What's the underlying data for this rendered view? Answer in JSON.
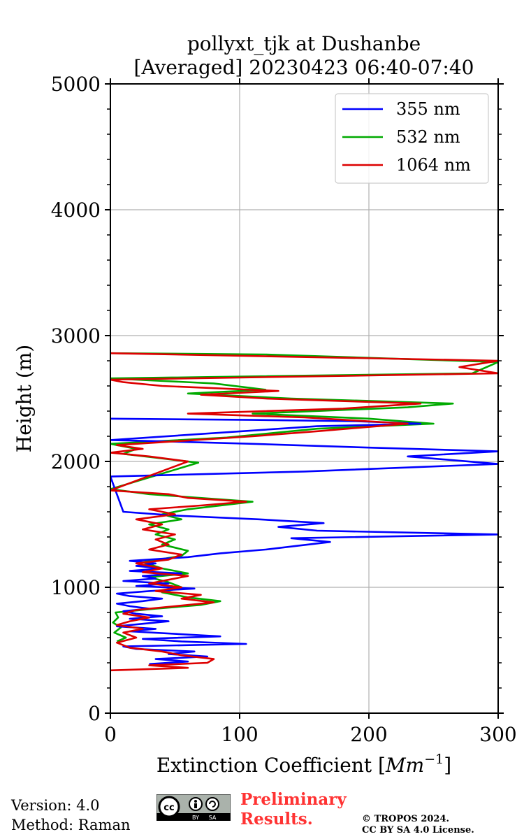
{
  "chart_data": {
    "type": "line",
    "title": "pollyxt_tjk at Dushanbe",
    "subtitle": "[Averaged] 20230423 06:40-07:40",
    "xlabel": "Extinction Coefficient [",
    "xlabel_unit": "Mm",
    "xlabel_exp": "−1",
    "xlabel_close": "]",
    "ylabel": "Height (m)",
    "xlim": [
      0,
      300
    ],
    "ylim": [
      0,
      5000
    ],
    "x_ticks": [
      0,
      100,
      200,
      300
    ],
    "y_ticks": [
      0,
      1000,
      2000,
      3000,
      4000,
      5000
    ],
    "x_tick_labels": [
      "0",
      "100",
      "200",
      "300"
    ],
    "y_tick_labels": [
      "0",
      "1000",
      "2000",
      "3000",
      "4000",
      "5000"
    ],
    "grid": true,
    "legend_position": "top-right",
    "series": [
      {
        "name": "355 nm",
        "color": "#0000ff",
        "points": [
          [
            30,
            390
          ],
          [
            60,
            410
          ],
          [
            35,
            430
          ],
          [
            75,
            450
          ],
          [
            45,
            470
          ],
          [
            65,
            490
          ],
          [
            20,
            510
          ],
          [
            10,
            530
          ],
          [
            105,
            550
          ],
          [
            55,
            570
          ],
          [
            25,
            590
          ],
          [
            85,
            610
          ],
          [
            50,
            630
          ],
          [
            15,
            650
          ],
          [
            35,
            670
          ],
          [
            5,
            690
          ],
          [
            25,
            710
          ],
          [
            45,
            730
          ],
          [
            15,
            750
          ],
          [
            40,
            770
          ],
          [
            20,
            790
          ],
          [
            10,
            810
          ],
          [
            30,
            830
          ],
          [
            15,
            850
          ],
          [
            5,
            870
          ],
          [
            25,
            890
          ],
          [
            40,
            910
          ],
          [
            15,
            930
          ],
          [
            5,
            950
          ],
          [
            30,
            970
          ],
          [
            65,
            990
          ],
          [
            20,
            1010
          ],
          [
            45,
            1030
          ],
          [
            10,
            1050
          ],
          [
            35,
            1070
          ],
          [
            25,
            1090
          ],
          [
            55,
            1110
          ],
          [
            15,
            1130
          ],
          [
            40,
            1150
          ],
          [
            20,
            1170
          ],
          [
            35,
            1190
          ],
          [
            15,
            1210
          ],
          [
            60,
            1240
          ],
          [
            85,
            1270
          ],
          [
            120,
            1300
          ],
          [
            145,
            1330
          ],
          [
            170,
            1360
          ],
          [
            140,
            1390
          ],
          [
            300,
            1420
          ],
          [
            160,
            1450
          ],
          [
            130,
            1480
          ],
          [
            165,
            1510
          ],
          [
            115,
            1540
          ],
          [
            50,
            1570
          ],
          [
            10,
            1600
          ],
          [
            0,
            1880
          ],
          [
            150,
            1920
          ],
          [
            300,
            1980
          ],
          [
            230,
            2040
          ],
          [
            300,
            2080
          ],
          [
            200,
            2110
          ],
          [
            110,
            2140
          ],
          [
            40,
            2160
          ],
          [
            0,
            2170
          ],
          [
            160,
            2280
          ],
          [
            240,
            2300
          ],
          [
            190,
            2320
          ],
          [
            110,
            2330
          ],
          [
            0,
            2340
          ]
        ]
      },
      {
        "name": "532 nm",
        "color": "#00aa00",
        "points": [
          [
            5,
            570
          ],
          [
            12,
            600
          ],
          [
            3,
            640
          ],
          [
            8,
            680
          ],
          [
            2,
            720
          ],
          [
            6,
            760
          ],
          [
            4,
            800
          ],
          [
            35,
            830
          ],
          [
            70,
            860
          ],
          [
            85,
            890
          ],
          [
            60,
            920
          ],
          [
            40,
            960
          ],
          [
            55,
            1000
          ],
          [
            45,
            1040
          ],
          [
            30,
            1080
          ],
          [
            60,
            1110
          ],
          [
            40,
            1150
          ],
          [
            25,
            1200
          ],
          [
            55,
            1250
          ],
          [
            60,
            1290
          ],
          [
            40,
            1340
          ],
          [
            50,
            1380
          ],
          [
            35,
            1420
          ],
          [
            45,
            1460
          ],
          [
            30,
            1500
          ],
          [
            55,
            1540
          ],
          [
            40,
            1580
          ],
          [
            60,
            1620
          ],
          [
            110,
            1680
          ],
          [
            30,
            1740
          ],
          [
            0,
            1780
          ],
          [
            68,
            1990
          ],
          [
            35,
            2030
          ],
          [
            10,
            2060
          ],
          [
            20,
            2100
          ],
          [
            0,
            2140
          ],
          [
            90,
            2190
          ],
          [
            130,
            2230
          ],
          [
            160,
            2260
          ],
          [
            250,
            2300
          ],
          [
            200,
            2340
          ],
          [
            110,
            2380
          ],
          [
            230,
            2430
          ],
          [
            265,
            2460
          ],
          [
            140,
            2500
          ],
          [
            60,
            2540
          ],
          [
            120,
            2570
          ],
          [
            80,
            2620
          ],
          [
            0,
            2660
          ],
          [
            280,
            2700
          ],
          [
            300,
            2790
          ],
          [
            120,
            2850
          ],
          [
            0,
            2860
          ]
        ]
      },
      {
        "name": "1064 nm",
        "color": "#dd0000",
        "points": [
          [
            0,
            340
          ],
          [
            60,
            360
          ],
          [
            30,
            380
          ],
          [
            75,
            400
          ],
          [
            80,
            430
          ],
          [
            55,
            460
          ],
          [
            40,
            490
          ],
          [
            15,
            520
          ],
          [
            5,
            560
          ],
          [
            20,
            600
          ],
          [
            10,
            640
          ],
          [
            25,
            670
          ],
          [
            5,
            700
          ],
          [
            15,
            730
          ],
          [
            30,
            760
          ],
          [
            10,
            790
          ],
          [
            20,
            820
          ],
          [
            50,
            850
          ],
          [
            80,
            880
          ],
          [
            55,
            910
          ],
          [
            70,
            940
          ],
          [
            35,
            970
          ],
          [
            55,
            1000
          ],
          [
            30,
            1030
          ],
          [
            45,
            1060
          ],
          [
            60,
            1090
          ],
          [
            25,
            1120
          ],
          [
            40,
            1150
          ],
          [
            20,
            1190
          ],
          [
            45,
            1220
          ],
          [
            55,
            1260
          ],
          [
            30,
            1300
          ],
          [
            45,
            1340
          ],
          [
            35,
            1380
          ],
          [
            50,
            1420
          ],
          [
            25,
            1460
          ],
          [
            40,
            1500
          ],
          [
            20,
            1540
          ],
          [
            50,
            1580
          ],
          [
            30,
            1620
          ],
          [
            70,
            1650
          ],
          [
            105,
            1680
          ],
          [
            60,
            1710
          ],
          [
            45,
            1740
          ],
          [
            0,
            1770
          ],
          [
            60,
            2000
          ],
          [
            30,
            2040
          ],
          [
            0,
            2070
          ],
          [
            25,
            2100
          ],
          [
            5,
            2130
          ],
          [
            65,
            2170
          ],
          [
            110,
            2200
          ],
          [
            160,
            2240
          ],
          [
            230,
            2300
          ],
          [
            150,
            2350
          ],
          [
            60,
            2380
          ],
          [
            180,
            2420
          ],
          [
            240,
            2460
          ],
          [
            120,
            2500
          ],
          [
            70,
            2530
          ],
          [
            130,
            2560
          ],
          [
            40,
            2600
          ],
          [
            10,
            2630
          ],
          [
            0,
            2650
          ],
          [
            300,
            2700
          ],
          [
            270,
            2750
          ],
          [
            300,
            2800
          ],
          [
            100,
            2840
          ],
          [
            0,
            2860
          ]
        ]
      }
    ]
  },
  "footer": {
    "version": "Version: 4.0",
    "method": "Method: Raman",
    "preliminary_line1": "Preliminary",
    "preliminary_line2": "Results.",
    "copyright_line1": "© TROPOS 2024.",
    "copyright_line2": "CC BY SA 4.0 License.",
    "cc_label": "cc",
    "by_label": "BY",
    "sa_label": "SA"
  }
}
